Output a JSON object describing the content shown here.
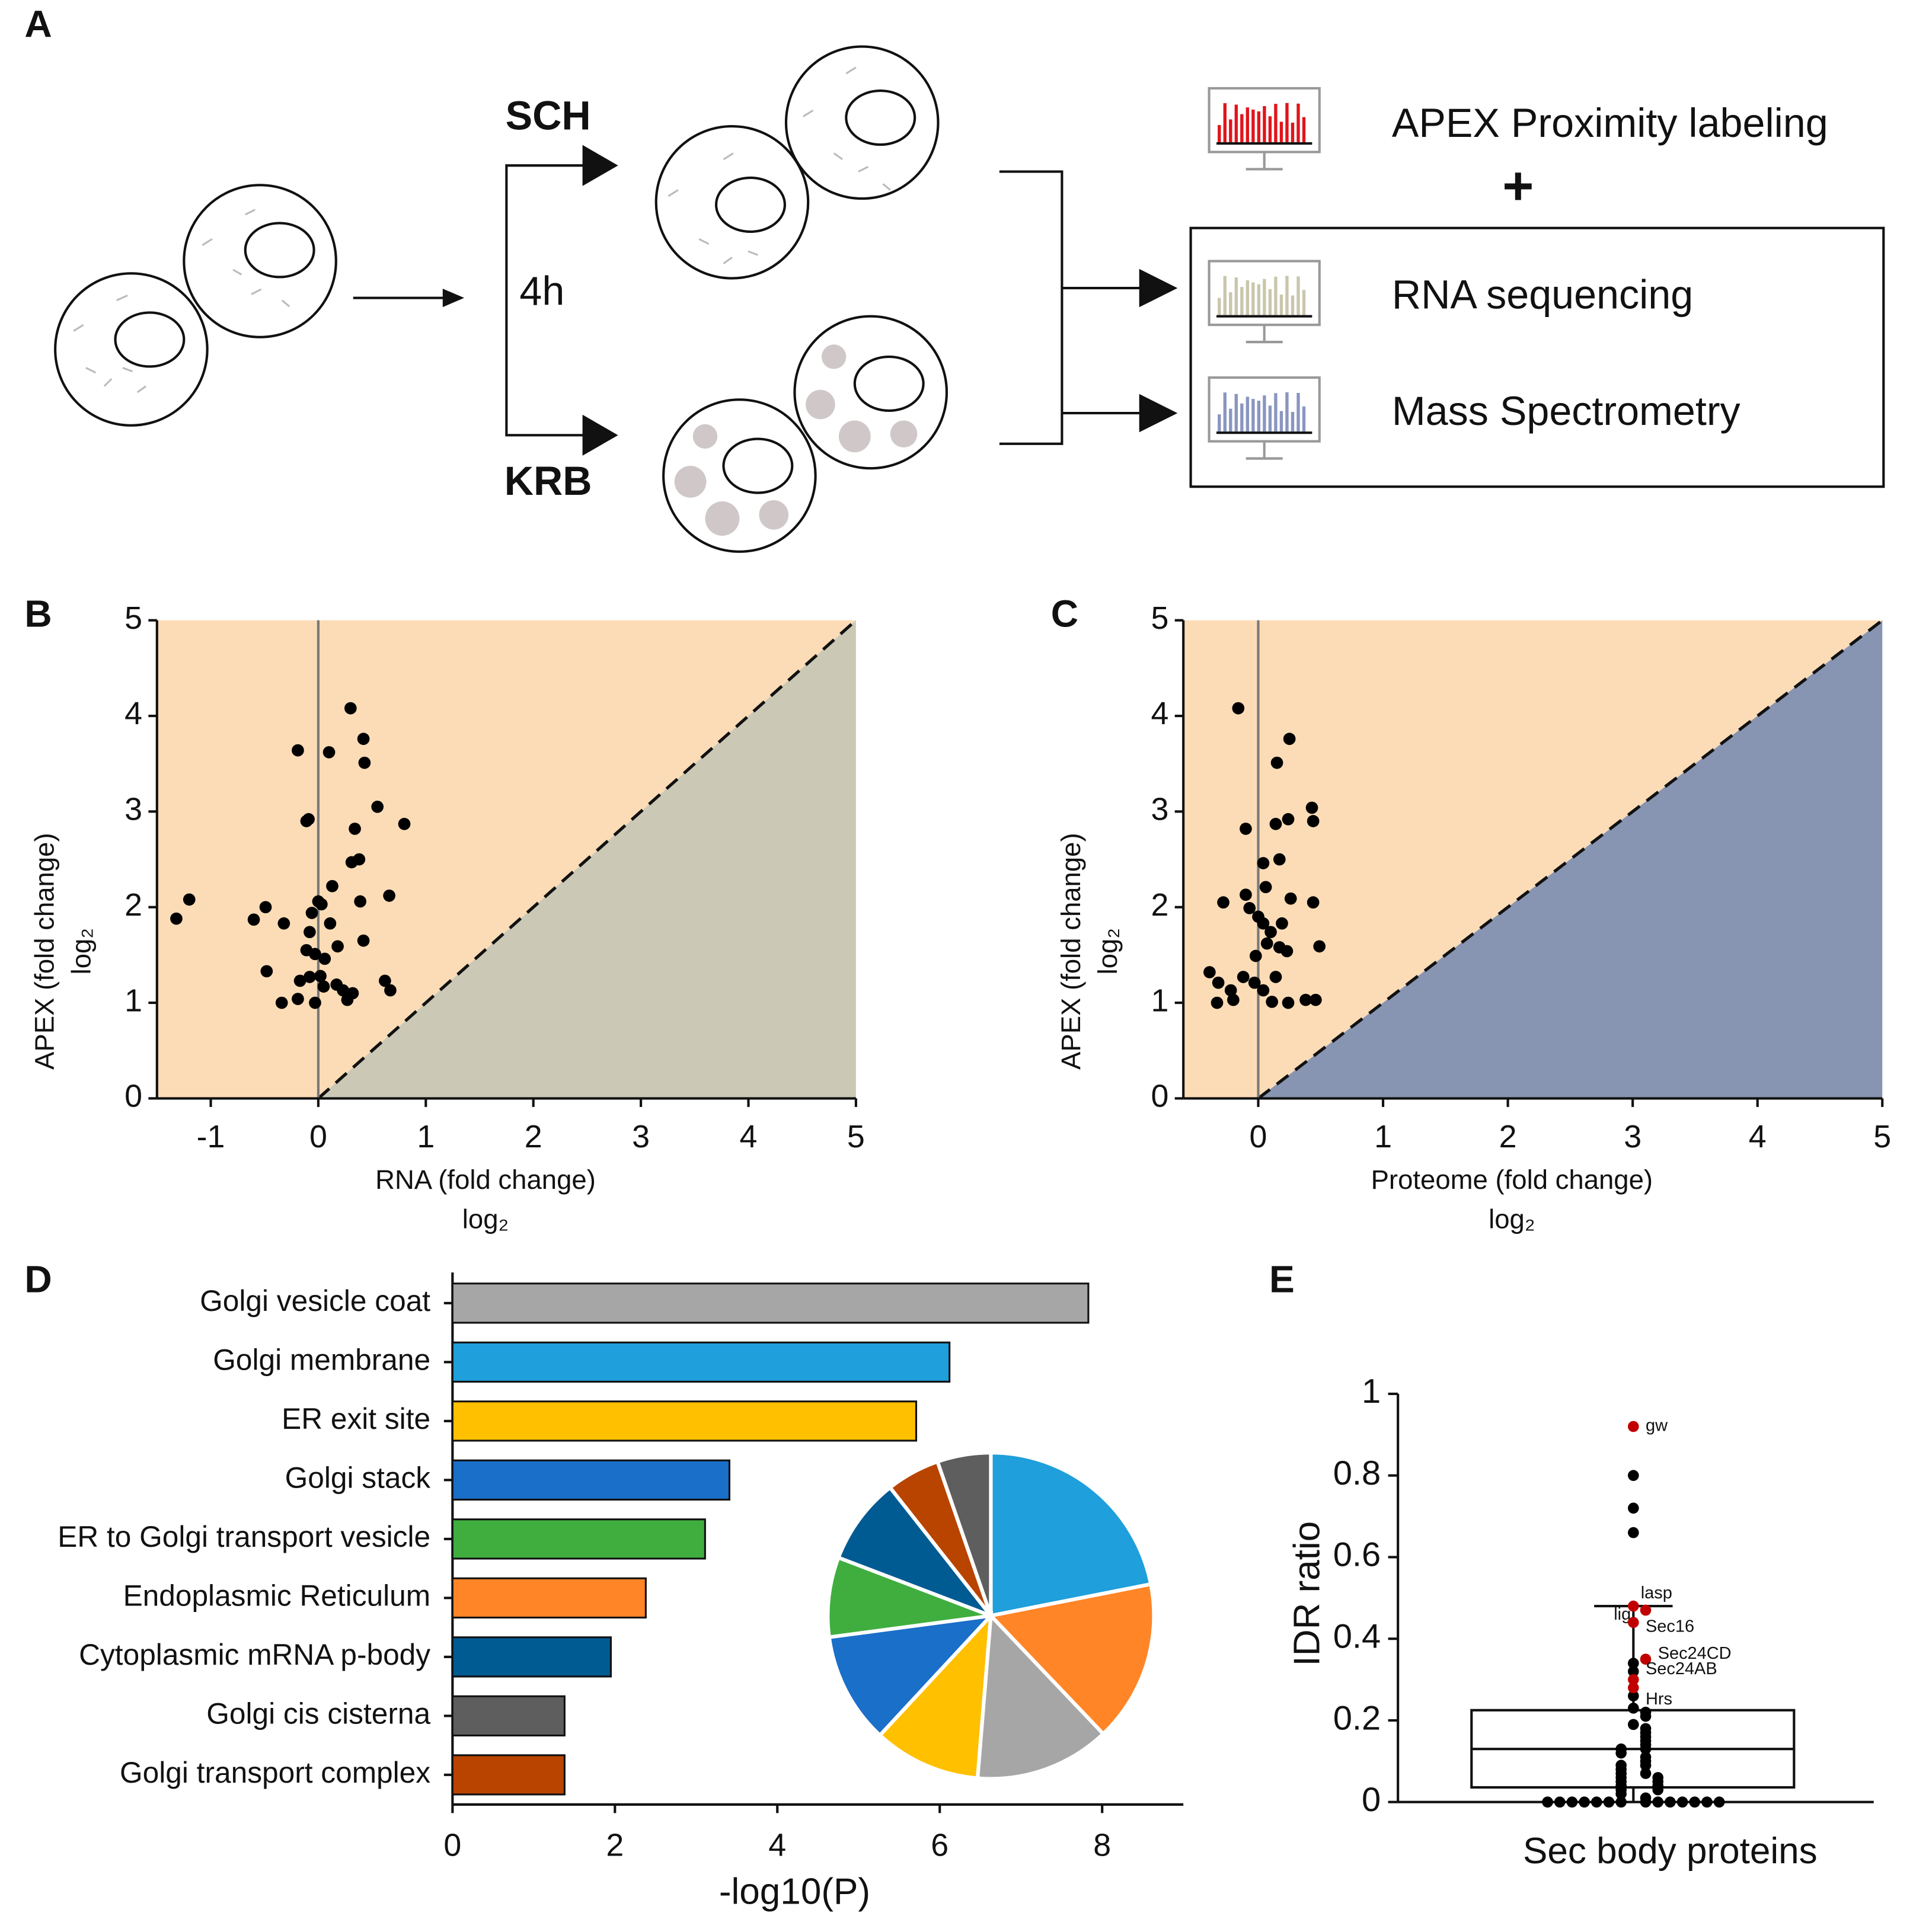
{
  "diagram": {
    "panel_label": "A",
    "sch": "SCH",
    "krb": "KRB",
    "time": "4h",
    "apex": "APEX Proximity labeling",
    "plus": "+",
    "rna": "RNA sequencing",
    "ms": "Mass Spectrometry"
  },
  "chart_data": [
    {
      "type": "scatter",
      "panel_label": "B",
      "xlabel": "RNA (fold change)",
      "xlabel_sub": "log₂",
      "ylabel": "APEX (fold change)",
      "ylabel_sub": "log₂",
      "xlim": [
        -1.5,
        5
      ],
      "ylim": [
        0,
        5
      ],
      "xticks": [
        -1,
        0,
        1,
        2,
        3,
        4,
        5
      ],
      "yticks": [
        0,
        1,
        2,
        3,
        4,
        5
      ],
      "color": "#000000",
      "region_colors": [
        "#fcdcb6",
        "#cbc9b6"
      ],
      "x": [
        -1.32,
        -1.2,
        -0.6,
        -0.49,
        -0.48,
        -0.32,
        -0.34,
        -0.19,
        -0.11,
        -0.09,
        -0.17,
        -0.19,
        -0.06,
        -0.08,
        0,
        0.03,
        -0.11,
        -0.03,
        -0.08,
        0.02,
        -0.03,
        0.06,
        0.11,
        0.18,
        0.13,
        0.05,
        0.17,
        0.23,
        0.27,
        0.1,
        0.3,
        0.42,
        0.43,
        0.34,
        0.31,
        0.38,
        0.39,
        0.42,
        0.55,
        0.8,
        0.66,
        0.62,
        0.67,
        0.32
      ],
      "values": [
        1.88,
        2.08,
        1.87,
        2.0,
        1.33,
        1.83,
        1.0,
        3.64,
        2.9,
        2.92,
        1.23,
        1.04,
        1.94,
        1.74,
        2.06,
        2.03,
        1.55,
        1.51,
        1.27,
        1.28,
        1.0,
        1.46,
        1.83,
        1.59,
        2.22,
        1.17,
        1.19,
        1.13,
        1.03,
        3.62,
        4.08,
        3.76,
        3.51,
        2.82,
        2.47,
        2.5,
        2.06,
        1.65,
        3.05,
        2.87,
        2.12,
        1.23,
        1.13,
        1.1
      ]
    },
    {
      "type": "scatter",
      "panel_label": "C",
      "xlabel": "Proteome (fold change)",
      "xlabel_sub": "log₂",
      "ylabel": "APEX (fold change)",
      "ylabel_sub": "log₂",
      "xlim": [
        -0.6,
        5
      ],
      "ylim": [
        0,
        5
      ],
      "xticks": [
        0,
        1,
        2,
        3,
        4,
        5
      ],
      "yticks": [
        0,
        1,
        2,
        3,
        4,
        5
      ],
      "color": "#000000",
      "region_colors": [
        "#fcdcb6",
        "#8794b2"
      ],
      "x": [
        -0.16,
        0.15,
        0.25,
        -0.1,
        0.14,
        0.24,
        0.43,
        0.44,
        0.17,
        0.04,
        -0.1,
        -0.28,
        -0.07,
        0.06,
        0.26,
        0.44,
        0,
        0.04,
        0.1,
        0.19,
        0.07,
        0.17,
        0.23,
        0.49,
        -0.02,
        -0.39,
        -0.12,
        -0.32,
        -0.03,
        0.14,
        -0.22,
        0.04,
        -0.2,
        -0.33,
        0.11,
        0.24,
        0.38,
        0.46
      ],
      "values": [
        4.08,
        3.51,
        3.76,
        2.82,
        2.87,
        2.92,
        3.04,
        2.9,
        2.5,
        2.46,
        2.13,
        2.05,
        1.99,
        2.21,
        2.09,
        2.05,
        1.9,
        1.83,
        1.74,
        1.83,
        1.62,
        1.58,
        1.54,
        1.59,
        1.49,
        1.32,
        1.27,
        1.21,
        1.21,
        1.27,
        1.13,
        1.13,
        1.03,
        1.0,
        1.01,
        1.0,
        1.03,
        1.03
      ]
    },
    {
      "type": "hbar",
      "panel_label": "D",
      "xlabel": "-log10(P)",
      "xlim": [
        0,
        9
      ],
      "xticks": [
        0,
        2,
        4,
        6,
        8
      ],
      "categories": [
        "Golgi vesicle coat",
        "Golgi membrane",
        "ER exit site",
        "Golgi stack",
        "ER to Golgi transport vesicle",
        "Endoplasmic Reticulum",
        "Cytoplasmic mRNA p-body",
        "Golgi cis cisterna",
        "Golgi transport complex"
      ],
      "values": [
        7.83,
        6.12,
        5.71,
        3.41,
        3.11,
        2.38,
        1.95,
        1.38,
        1.38
      ],
      "colors": [
        "#a6a6a6",
        "#1f9fdb",
        "#ffc000",
        "#1a6fc9",
        "#3fae3f",
        "#ff8527",
        "#005b93",
        "#5e5e5e",
        "#b84400"
      ]
    },
    {
      "type": "pie",
      "values": [
        21.9,
        16.0,
        13.4,
        10.6,
        11.0,
        7.9,
        8.6,
        5.3,
        5.3
      ],
      "colors": [
        "#1f9fdb",
        "#ff8527",
        "#a6a6a6",
        "#ffc000",
        "#1a6fc9",
        "#3fae3f",
        "#005b93",
        "#b84400",
        "#5e5e5e"
      ]
    },
    {
      "type": "box",
      "panel_label": "E",
      "xlabel": "Sec body proteins",
      "ylabel": "IDR ratio",
      "ylim": [
        0,
        1
      ],
      "yticks": [
        0,
        0.2,
        0.4,
        0.6,
        0.8,
        1
      ],
      "box": {
        "whisker_low": 0,
        "q1": 0.036,
        "median": 0.13,
        "q3": 0.225,
        "whisker_high": 0.48
      },
      "points": {
        "color": "#000000",
        "values": [
          0.8,
          0.72,
          0.66,
          0.34,
          0.32,
          0.26,
          0.23,
          0.22,
          0.21,
          0.19,
          0.18,
          0.17,
          0.16,
          0.15,
          0.14,
          0.13,
          0.13,
          0.12,
          0.11,
          0.1,
          0.09,
          0.09,
          0.08,
          0.07,
          0.07,
          0.06,
          0.06,
          0.05,
          0.05,
          0.04,
          0.04,
          0.03,
          0.03,
          0.02,
          0.01,
          0,
          0,
          0,
          0,
          0,
          0,
          0,
          0,
          0,
          0,
          0,
          0,
          0,
          0
        ]
      },
      "labeled": {
        "color": "#c00000",
        "labels": [
          "gw",
          "lasp",
          "lig",
          "Sec16",
          "Sec24CD",
          "Sec24AB",
          "Hrs"
        ],
        "values": [
          0.92,
          0.48,
          0.47,
          0.44,
          0.35,
          0.3,
          0.28
        ]
      }
    }
  ]
}
